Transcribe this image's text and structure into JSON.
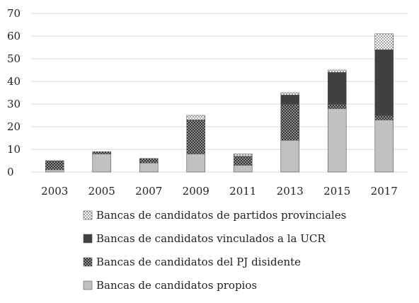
{
  "chart_data": {
    "type": "bar",
    "stacked": true,
    "title": "",
    "xlabel": "",
    "ylabel": "",
    "ylim": [
      0,
      70
    ],
    "yticks": [
      0,
      10,
      20,
      30,
      40,
      50,
      60,
      70
    ],
    "grid": true,
    "legend_position": "bottom",
    "categories": [
      "2003",
      "2005",
      "2007",
      "2009",
      "2011",
      "2013",
      "2015",
      "2017"
    ],
    "series": [
      {
        "name": "Bancas de candidatos propios",
        "color": "#c0c0c0",
        "pattern": "solid",
        "values": [
          1,
          8,
          4,
          8,
          3,
          14,
          28,
          23
        ]
      },
      {
        "name": "Bancas de candidatos del PJ disidente",
        "color": "#333333",
        "pattern": "dots-light-on-dark",
        "values": [
          4,
          1,
          2,
          15,
          4,
          16,
          2,
          2
        ]
      },
      {
        "name": "Bancas de candidatos vinculados a la UCR",
        "color": "#404040",
        "pattern": "solid",
        "values": [
          0,
          0,
          0,
          0,
          0,
          4,
          14,
          29
        ]
      },
      {
        "name": "Bancas de candidatos de partidos provinciales",
        "color": "#ffffff",
        "pattern": "dots-dark-on-light",
        "values": [
          0,
          0,
          0,
          2,
          1,
          1,
          1,
          7
        ]
      }
    ]
  }
}
